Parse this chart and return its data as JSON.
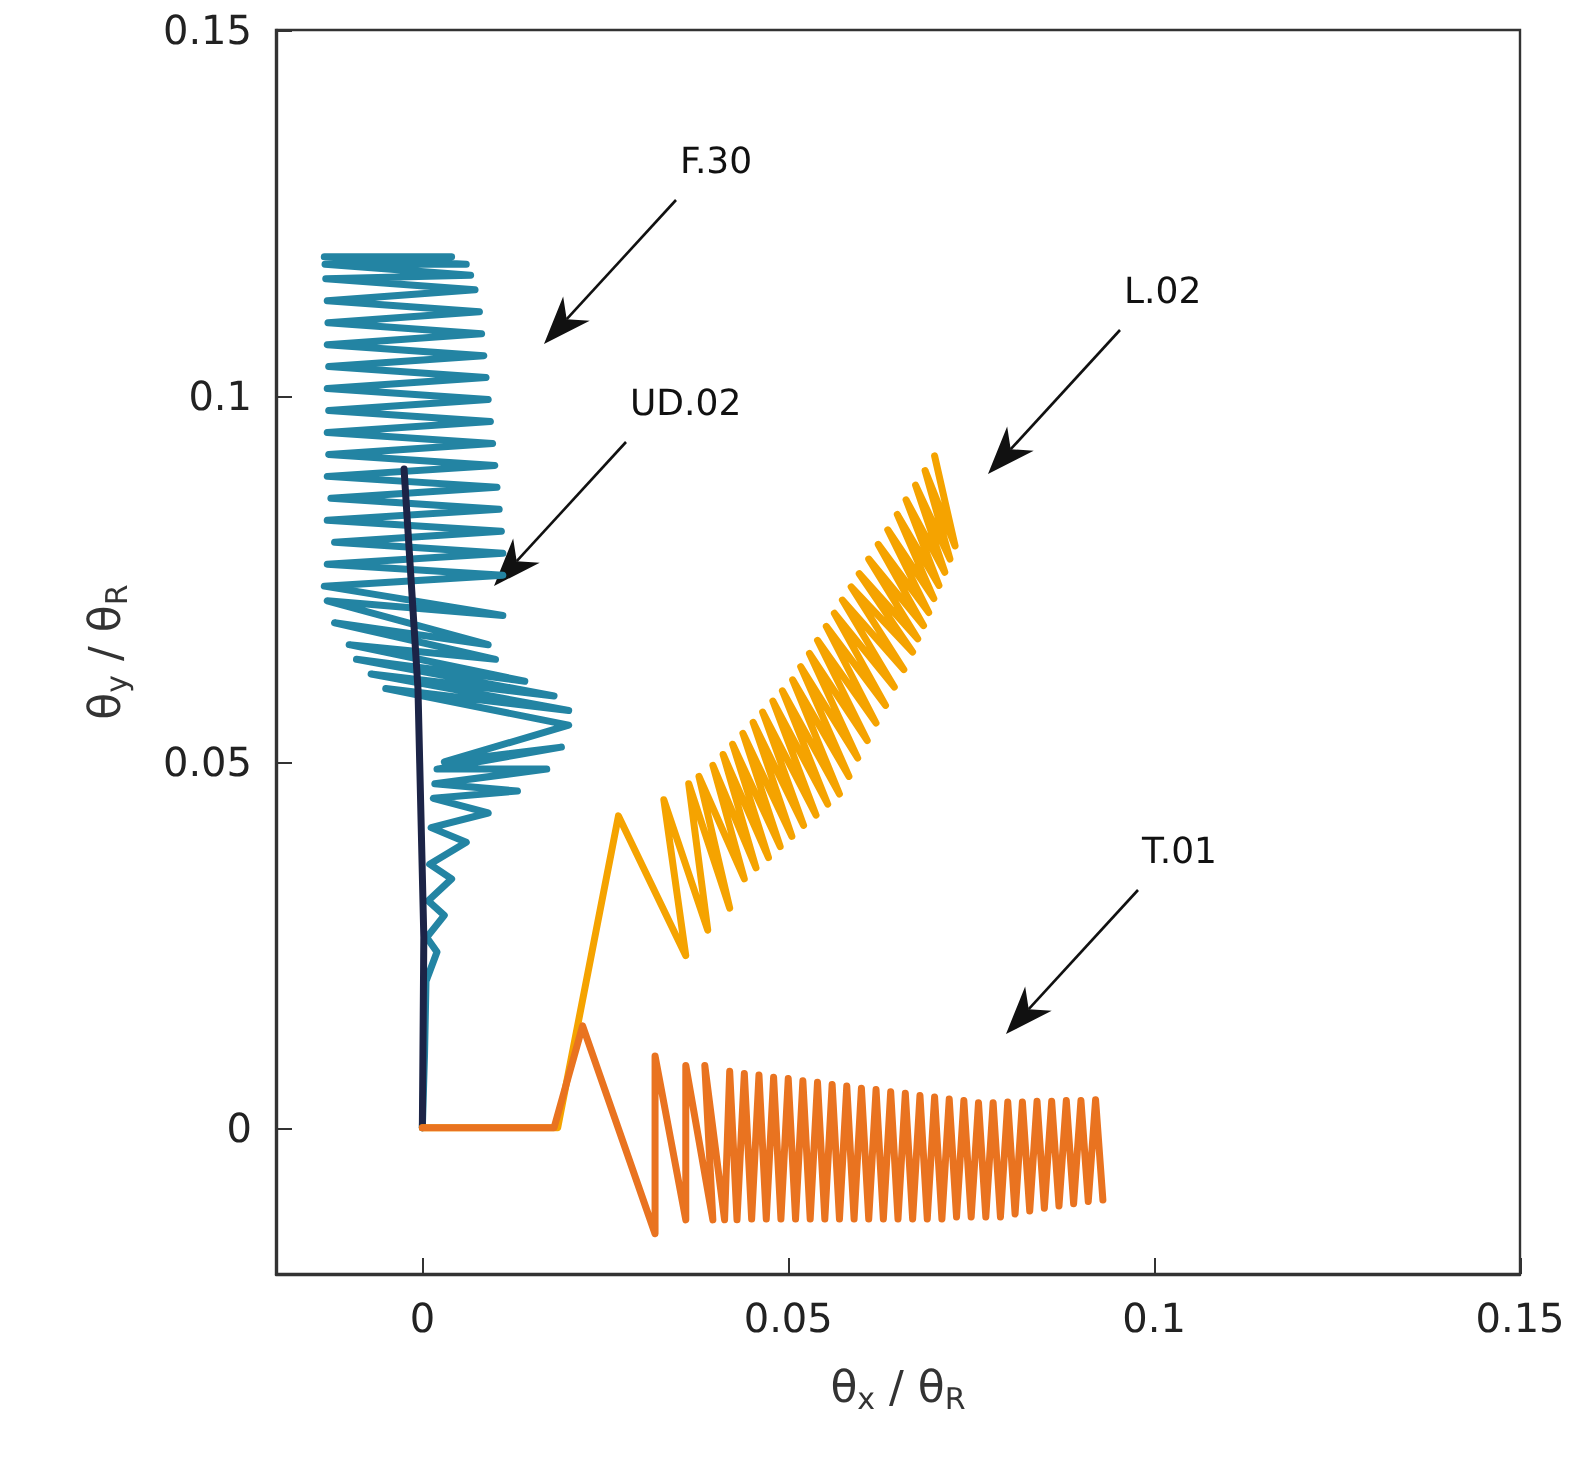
{
  "chart_data": {
    "type": "line",
    "xlabel": "θ$_{x}$ / θ$_{R}$",
    "ylabel": "θ$_{y}$ / θ$_{R}$",
    "xlim": [
      -0.02,
      0.15
    ],
    "ylim": [
      -0.02,
      0.15
    ],
    "xticks": [
      0,
      0.05,
      0.1,
      0.15
    ],
    "yticks": [
      0,
      0.05,
      0.1,
      0.15
    ],
    "grid": false,
    "legend": false,
    "marker": "none",
    "line_style": "solid",
    "series": [
      {
        "name": "F.30",
        "color": "#2384a3",
        "x": [
          0,
          0.0003,
          0.0005,
          0.002,
          0.0006,
          0.003,
          0.0008,
          0.004,
          0.001,
          0.006,
          0.0012,
          0.009,
          0.0015,
          0.013,
          0.0017,
          0.017,
          0.002,
          0.019,
          0.003,
          0.02,
          -0.005,
          0.02,
          -0.007,
          0.018,
          -0.009,
          0.014,
          -0.01,
          0.01,
          -0.012,
          0.009,
          -0.013,
          0.011,
          -0.0134,
          0.011,
          -0.013,
          0.011,
          -0.012,
          0.0108,
          -0.013,
          0.0105,
          -0.0125,
          0.0102,
          -0.013,
          0.0099,
          -0.0128,
          0.0096,
          -0.013,
          0.0093,
          -0.0128,
          0.009,
          -0.013,
          0.0087,
          -0.0128,
          0.0084,
          -0.013,
          0.0081,
          -0.0129,
          0.0078,
          -0.013,
          0.0072,
          -0.0132,
          0.0066,
          -0.0133,
          0.006,
          -0.0134,
          0.004
        ],
        "values": [
          0,
          0.01,
          0.02,
          0.024,
          0.026,
          0.029,
          0.031,
          0.034,
          0.036,
          0.039,
          0.041,
          0.043,
          0.045,
          0.046,
          0.047,
          0.049,
          0.049,
          0.052,
          0.05,
          0.055,
          0.06,
          0.057,
          0.062,
          0.059,
          0.064,
          0.061,
          0.066,
          0.064,
          0.069,
          0.066,
          0.072,
          0.07,
          0.074,
          0.0755,
          0.077,
          0.0785,
          0.08,
          0.0815,
          0.083,
          0.0845,
          0.086,
          0.0875,
          0.089,
          0.0905,
          0.092,
          0.0935,
          0.095,
          0.0965,
          0.098,
          0.0995,
          0.101,
          0.1025,
          0.104,
          0.1055,
          0.107,
          0.1085,
          0.11,
          0.1115,
          0.113,
          0.1145,
          0.116,
          0.1165,
          0.118,
          0.118,
          0.119,
          0.119
        ]
      },
      {
        "name": "UD.02",
        "color": "#1c2447",
        "x": [
          0,
          0.0002,
          -0.0006,
          -0.0025
        ],
        "values": [
          0,
          0.026,
          0.06,
          0.09
        ]
      },
      {
        "name": "L.02",
        "color": "#f5a300",
        "x": [
          0,
          0.0185,
          0.0268,
          0.036,
          0.033,
          0.039,
          0.0364,
          0.042,
          0.0378,
          0.044,
          0.0397,
          0.0456,
          0.0411,
          0.0473,
          0.0424,
          0.0489,
          0.0438,
          0.0505,
          0.0452,
          0.0521,
          0.0465,
          0.0538,
          0.0479,
          0.0554,
          0.0492,
          0.057,
          0.0506,
          0.0583,
          0.0517,
          0.0595,
          0.0529,
          0.0608,
          0.054,
          0.062,
          0.0552,
          0.0633,
          0.0563,
          0.0645,
          0.0574,
          0.0658,
          0.0586,
          0.067,
          0.0597,
          0.0677,
          0.061,
          0.0685,
          0.0623,
          0.0692,
          0.0636,
          0.0699,
          0.0649,
          0.0706,
          0.0661,
          0.0714,
          0.0674,
          0.0721,
          0.0687,
          0.0728,
          0.07
        ],
        "values": [
          0,
          0,
          0.0426,
          0.0235,
          0.0448,
          0.027,
          0.047,
          0.03,
          0.048,
          0.034,
          0.0495,
          0.0355,
          0.051,
          0.0369,
          0.0524,
          0.0384,
          0.0539,
          0.0398,
          0.0554,
          0.0413,
          0.0568,
          0.0427,
          0.0583,
          0.0442,
          0.0597,
          0.0456,
          0.0612,
          0.048,
          0.063,
          0.0505,
          0.0648,
          0.0529,
          0.0666,
          0.0553,
          0.0685,
          0.0577,
          0.0703,
          0.0602,
          0.0721,
          0.0626,
          0.0739,
          0.065,
          0.0757,
          0.0668,
          0.0777,
          0.0686,
          0.0797,
          0.0704,
          0.0817,
          0.0723,
          0.0838,
          0.0741,
          0.0858,
          0.0759,
          0.0878,
          0.0777,
          0.0898,
          0.0795,
          0.0918
        ]
      },
      {
        "name": "T.01",
        "color": "#e97320",
        "x": [
          0,
          0.018,
          0.0219,
          0.0318,
          0.0318,
          0.036,
          0.036,
          0.0397,
          0.0386,
          0.0413,
          0.042,
          0.043,
          0.044,
          0.045,
          0.046,
          0.047,
          0.048,
          0.049,
          0.05,
          0.051,
          0.052,
          0.053,
          0.054,
          0.055,
          0.056,
          0.057,
          0.058,
          0.059,
          0.06,
          0.061,
          0.062,
          0.063,
          0.064,
          0.065,
          0.066,
          0.067,
          0.068,
          0.069,
          0.07,
          0.071,
          0.072,
          0.073,
          0.074,
          0.075,
          0.076,
          0.077,
          0.078,
          0.079,
          0.08,
          0.081,
          0.082,
          0.083,
          0.084,
          0.085,
          0.086,
          0.087,
          0.088,
          0.089,
          0.09,
          0.091,
          0.092,
          0.093
        ],
        "values": [
          0,
          0,
          0.0139,
          -0.0145,
          0.0098,
          -0.0126,
          0.0085,
          -0.0126,
          0.0085,
          -0.0126,
          0.0077,
          -0.0126,
          0.0074,
          -0.0125,
          0.0072,
          -0.0125,
          0.0069,
          -0.0125,
          0.0067,
          -0.0125,
          0.0064,
          -0.0125,
          0.0062,
          -0.0125,
          0.0059,
          -0.0125,
          0.0057,
          -0.0125,
          0.0054,
          -0.0125,
          0.0052,
          -0.0125,
          0.0049,
          -0.0125,
          0.0047,
          -0.0125,
          0.0044,
          -0.0125,
          0.0042,
          -0.0125,
          0.0039,
          -0.0122,
          0.0037,
          -0.0122,
          0.0034,
          -0.0122,
          0.0034,
          -0.0122,
          0.0035,
          -0.0118,
          0.0035,
          -0.0114,
          0.0036,
          -0.011,
          0.0036,
          -0.0107,
          0.0037,
          -0.0104,
          0.0037,
          -0.0101,
          0.0038,
          -0.0099
        ]
      }
    ]
  }
}
